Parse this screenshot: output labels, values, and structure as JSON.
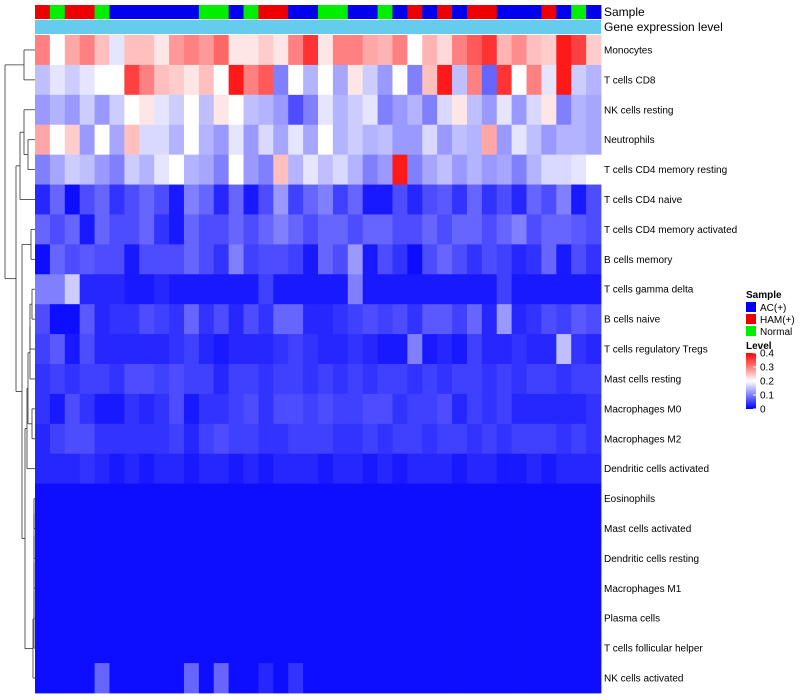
{
  "chart_data": {
    "type": "heatmap",
    "annotation_labels": {
      "sample": "Sample",
      "expression": "Gene expression level"
    },
    "sample_colors": {
      "AC(+)": "#0000ee",
      "HAM(+)": "#ee0000",
      "Normal": "#00ee00"
    },
    "expression_annotation_color": "#66ccee",
    "samples": [
      "HAM(+)",
      "Normal",
      "HAM(+)",
      "HAM(+)",
      "Normal",
      "AC(+)",
      "AC(+)",
      "AC(+)",
      "AC(+)",
      "AC(+)",
      "AC(+)",
      "Normal",
      "Normal",
      "AC(+)",
      "Normal",
      "HAM(+)",
      "HAM(+)",
      "AC(+)",
      "AC(+)",
      "Normal",
      "Normal",
      "AC(+)",
      "AC(+)",
      "Normal",
      "AC(+)",
      "HAM(+)",
      "AC(+)",
      "HAM(+)",
      "AC(+)",
      "HAM(+)",
      "HAM(+)",
      "AC(+)",
      "AC(+)",
      "AC(+)",
      "HAM(+)",
      "AC(+)",
      "Normal",
      "AC(+)"
    ],
    "rows": [
      "Monocytes",
      "T cells CD8",
      "NK cells resting",
      "Neutrophils",
      "T cells CD4 memory resting",
      "T cells CD4 naive",
      "T cells CD4 memory activated",
      "B cells memory",
      "T cells gamma delta",
      "B cells naive",
      "T cells regulatory  Tregs",
      "Mast cells resting",
      "Macrophages M0",
      "Macrophages M2",
      "Dendritic cells activated",
      "Eosinophils",
      "Mast cells activated",
      "Dendritic cells resting",
      "Macrophages M1",
      "Plasma cells",
      "T cells follicular helper",
      "NK cells activated"
    ],
    "values": [
      [
        0.3,
        0.2,
        0.27,
        0.3,
        0.25,
        0.18,
        0.25,
        0.25,
        0.22,
        0.28,
        0.3,
        0.28,
        0.32,
        0.22,
        0.22,
        0.24,
        0.22,
        0.3,
        0.36,
        0.22,
        0.3,
        0.3,
        0.27,
        0.26,
        0.3,
        0.2,
        0.26,
        0.23,
        0.3,
        0.33,
        0.36,
        0.26,
        0.29,
        0.25,
        0.24,
        0.38,
        0.35,
        0.24
      ],
      [
        0.15,
        0.18,
        0.16,
        0.18,
        0.2,
        0.2,
        0.35,
        0.3,
        0.25,
        0.24,
        0.22,
        0.25,
        0.2,
        0.38,
        0.3,
        0.33,
        0.1,
        0.2,
        0.14,
        0.2,
        0.13,
        0.22,
        0.16,
        0.12,
        0.2,
        0.1,
        0.25,
        0.38,
        0.15,
        0.3,
        0.08,
        0.36,
        0.2,
        0.3,
        0.18,
        0.38,
        0.16,
        0.14
      ],
      [
        0.12,
        0.14,
        0.12,
        0.16,
        0.12,
        0.16,
        0.2,
        0.22,
        0.18,
        0.16,
        0.2,
        0.15,
        0.22,
        0.2,
        0.15,
        0.14,
        0.12,
        0.06,
        0.1,
        0.18,
        0.14,
        0.16,
        0.18,
        0.1,
        0.12,
        0.14,
        0.1,
        0.17,
        0.22,
        0.15,
        0.12,
        0.18,
        0.12,
        0.17,
        0.22,
        0.1,
        0.14,
        0.13
      ],
      [
        0.27,
        0.2,
        0.24,
        0.12,
        0.2,
        0.13,
        0.25,
        0.17,
        0.17,
        0.14,
        0.2,
        0.14,
        0.12,
        0.18,
        0.12,
        0.17,
        0.13,
        0.18,
        0.13,
        0.2,
        0.14,
        0.16,
        0.14,
        0.15,
        0.12,
        0.12,
        0.17,
        0.12,
        0.15,
        0.14,
        0.27,
        0.12,
        0.18,
        0.15,
        0.12,
        0.14,
        0.14,
        0.13
      ],
      [
        0.1,
        0.13,
        0.16,
        0.15,
        0.12,
        0.1,
        0.16,
        0.14,
        0.18,
        0.2,
        0.14,
        0.13,
        0.1,
        0.2,
        0.12,
        0.1,
        0.25,
        0.14,
        0.18,
        0.15,
        0.17,
        0.14,
        0.1,
        0.12,
        0.38,
        0.1,
        0.13,
        0.15,
        0.12,
        0.14,
        0.12,
        0.13,
        0.1,
        0.14,
        0.17,
        0.17,
        0.18,
        0.2
      ],
      [
        0.03,
        0.08,
        0.01,
        0.06,
        0.08,
        0.04,
        0.06,
        0.08,
        0.06,
        0.02,
        0.1,
        0.08,
        0.03,
        0.08,
        0.02,
        0.06,
        0.12,
        0.05,
        0.08,
        0.1,
        0.05,
        0.08,
        0.02,
        0.02,
        0.06,
        0.03,
        0.06,
        0.07,
        0.04,
        0.08,
        0.04,
        0.06,
        0.03,
        0.08,
        0.06,
        0.1,
        0.02,
        0.06
      ],
      [
        0.08,
        0.06,
        0.08,
        0.02,
        0.08,
        0.06,
        0.06,
        0.08,
        0.04,
        0.02,
        0.08,
        0.06,
        0.06,
        0.08,
        0.06,
        0.08,
        0.1,
        0.08,
        0.06,
        0.08,
        0.08,
        0.06,
        0.08,
        0.08,
        0.06,
        0.06,
        0.08,
        0.06,
        0.08,
        0.08,
        0.06,
        0.08,
        0.1,
        0.06,
        0.08,
        0.08,
        0.07,
        0.06
      ],
      [
        0.01,
        0.08,
        0.06,
        0.07,
        0.06,
        0.06,
        0.02,
        0.06,
        0.06,
        0.06,
        0.08,
        0.06,
        0.04,
        0.1,
        0.05,
        0.06,
        0.06,
        0.05,
        0.02,
        0.08,
        0.06,
        0.12,
        0.02,
        0.06,
        0.04,
        0.01,
        0.06,
        0.08,
        0.06,
        0.04,
        0.06,
        0.05,
        0.03,
        0.04,
        0.08,
        0.02,
        0.06,
        0.04
      ],
      [
        0.1,
        0.1,
        0.16,
        0.03,
        0.03,
        0.03,
        0.02,
        0.02,
        0.03,
        0.02,
        0.02,
        0.02,
        0.02,
        0.02,
        0.02,
        0.05,
        0.02,
        0.02,
        0.02,
        0.02,
        0.02,
        0.1,
        0.02,
        0.02,
        0.02,
        0.02,
        0.02,
        0.02,
        0.02,
        0.02,
        0.02,
        0.05,
        0.02,
        0.02,
        0.02,
        0.02,
        0.02,
        0.02
      ],
      [
        0.06,
        0.01,
        0.01,
        0.07,
        0.03,
        0.04,
        0.04,
        0.06,
        0.05,
        0.04,
        0.08,
        0.04,
        0.06,
        0.03,
        0.06,
        0.04,
        0.08,
        0.08,
        0.03,
        0.03,
        0.04,
        0.05,
        0.06,
        0.05,
        0.06,
        0.04,
        0.07,
        0.07,
        0.05,
        0.08,
        0.03,
        0.12,
        0.03,
        0.04,
        0.06,
        0.05,
        0.07,
        0.06
      ],
      [
        0.05,
        0.07,
        0.02,
        0.06,
        0.03,
        0.03,
        0.03,
        0.03,
        0.03,
        0.04,
        0.05,
        0.03,
        0.02,
        0.03,
        0.03,
        0.03,
        0.04,
        0.05,
        0.04,
        0.03,
        0.03,
        0.04,
        0.03,
        0.02,
        0.02,
        0.1,
        0.02,
        0.03,
        0.02,
        0.05,
        0.03,
        0.03,
        0.04,
        0.03,
        0.03,
        0.15,
        0.04,
        0.03
      ],
      [
        0.04,
        0.05,
        0.04,
        0.05,
        0.05,
        0.04,
        0.06,
        0.06,
        0.05,
        0.06,
        0.05,
        0.05,
        0.03,
        0.05,
        0.05,
        0.04,
        0.05,
        0.05,
        0.04,
        0.05,
        0.04,
        0.05,
        0.04,
        0.05,
        0.05,
        0.04,
        0.05,
        0.04,
        0.05,
        0.05,
        0.04,
        0.05,
        0.04,
        0.05,
        0.05,
        0.04,
        0.05,
        0.05
      ],
      [
        0.04,
        0.02,
        0.06,
        0.04,
        0.02,
        0.02,
        0.04,
        0.03,
        0.04,
        0.06,
        0.02,
        0.04,
        0.04,
        0.05,
        0.06,
        0.04,
        0.06,
        0.06,
        0.05,
        0.06,
        0.05,
        0.05,
        0.06,
        0.06,
        0.04,
        0.05,
        0.05,
        0.06,
        0.03,
        0.05,
        0.04,
        0.05,
        0.03,
        0.03,
        0.03,
        0.03,
        0.03,
        0.04
      ],
      [
        0.03,
        0.05,
        0.06,
        0.06,
        0.04,
        0.04,
        0.04,
        0.04,
        0.04,
        0.05,
        0.03,
        0.05,
        0.06,
        0.05,
        0.05,
        0.04,
        0.04,
        0.05,
        0.05,
        0.05,
        0.04,
        0.04,
        0.05,
        0.04,
        0.05,
        0.05,
        0.04,
        0.05,
        0.05,
        0.04,
        0.05,
        0.04,
        0.05,
        0.05,
        0.05,
        0.04,
        0.05,
        0.04
      ],
      [
        0.03,
        0.03,
        0.03,
        0.04,
        0.03,
        0.02,
        0.03,
        0.02,
        0.03,
        0.03,
        0.02,
        0.03,
        0.03,
        0.02,
        0.03,
        0.02,
        0.03,
        0.03,
        0.03,
        0.02,
        0.03,
        0.03,
        0.02,
        0.03,
        0.02,
        0.03,
        0.03,
        0.03,
        0.02,
        0.03,
        0.03,
        0.02,
        0.02,
        0.03,
        0.02,
        0.03,
        0.03,
        0.03
      ],
      [
        0.01,
        0.01,
        0.01,
        0.01,
        0.01,
        0.01,
        0.01,
        0.01,
        0.01,
        0.01,
        0.01,
        0.01,
        0.01,
        0.01,
        0.01,
        0.01,
        0.01,
        0.01,
        0.01,
        0.01,
        0.01,
        0.01,
        0.01,
        0.01,
        0.01,
        0.01,
        0.01,
        0.01,
        0.01,
        0.01,
        0.01,
        0.01,
        0.01,
        0.01,
        0.01,
        0.01,
        0.01,
        0.01
      ],
      [
        0.01,
        0.01,
        0.01,
        0.01,
        0.01,
        0.01,
        0.01,
        0.01,
        0.01,
        0.01,
        0.01,
        0.01,
        0.01,
        0.01,
        0.01,
        0.01,
        0.01,
        0.01,
        0.01,
        0.01,
        0.01,
        0.01,
        0.01,
        0.01,
        0.01,
        0.01,
        0.01,
        0.01,
        0.01,
        0.01,
        0.01,
        0.01,
        0.01,
        0.01,
        0.01,
        0.01,
        0.01,
        0.01
      ],
      [
        0.01,
        0.01,
        0.01,
        0.01,
        0.01,
        0.01,
        0.01,
        0.01,
        0.01,
        0.01,
        0.01,
        0.01,
        0.01,
        0.01,
        0.01,
        0.01,
        0.01,
        0.01,
        0.01,
        0.01,
        0.01,
        0.01,
        0.01,
        0.01,
        0.01,
        0.01,
        0.01,
        0.01,
        0.01,
        0.01,
        0.01,
        0.01,
        0.01,
        0.01,
        0.01,
        0.01,
        0.01,
        0.01
      ],
      [
        0.01,
        0.01,
        0.01,
        0.01,
        0.01,
        0.01,
        0.01,
        0.01,
        0.01,
        0.01,
        0.01,
        0.01,
        0.01,
        0.01,
        0.01,
        0.01,
        0.01,
        0.01,
        0.01,
        0.01,
        0.01,
        0.01,
        0.01,
        0.01,
        0.01,
        0.01,
        0.01,
        0.01,
        0.01,
        0.01,
        0.01,
        0.01,
        0.01,
        0.01,
        0.01,
        0.01,
        0.01,
        0.01
      ],
      [
        0.01,
        0.01,
        0.01,
        0.01,
        0.01,
        0.01,
        0.01,
        0.01,
        0.01,
        0.01,
        0.01,
        0.01,
        0.01,
        0.01,
        0.01,
        0.01,
        0.01,
        0.01,
        0.01,
        0.01,
        0.01,
        0.01,
        0.01,
        0.01,
        0.01,
        0.01,
        0.01,
        0.01,
        0.01,
        0.01,
        0.01,
        0.01,
        0.01,
        0.01,
        0.01,
        0.01,
        0.01,
        0.01
      ],
      [
        0.01,
        0.01,
        0.01,
        0.01,
        0.01,
        0.01,
        0.01,
        0.01,
        0.01,
        0.01,
        0.01,
        0.01,
        0.01,
        0.01,
        0.01,
        0.01,
        0.01,
        0.01,
        0.01,
        0.01,
        0.01,
        0.01,
        0.01,
        0.01,
        0.01,
        0.01,
        0.01,
        0.01,
        0.01,
        0.01,
        0.01,
        0.01,
        0.01,
        0.01,
        0.01,
        0.01,
        0.01,
        0.01
      ],
      [
        0.01,
        0.01,
        0.01,
        0.01,
        0.08,
        0.01,
        0.01,
        0.01,
        0.01,
        0.01,
        0.08,
        0.01,
        0.08,
        0.01,
        0.01,
        0.03,
        0.01,
        0.04,
        0.01,
        0.01,
        0.01,
        0.01,
        0.01,
        0.01,
        0.01,
        0.01,
        0.01,
        0.01,
        0.01,
        0.01,
        0.01,
        0.01,
        0.01,
        0.01,
        0.01,
        0.01,
        0.01,
        0.01
      ]
    ],
    "color_scale": {
      "min": 0,
      "mid": 0.2,
      "max": 0.4,
      "low": "#0000ff",
      "midColor": "#ffffff",
      "high": "#ff0000"
    },
    "legend": {
      "sample_title": "Sample",
      "sample_entries": [
        "AC(+)",
        "HAM(+)",
        "Normal"
      ],
      "level_title": "Level",
      "level_ticks": [
        0.4,
        0.3,
        0.2,
        0.1,
        0
      ],
      "placement": "right"
    }
  }
}
